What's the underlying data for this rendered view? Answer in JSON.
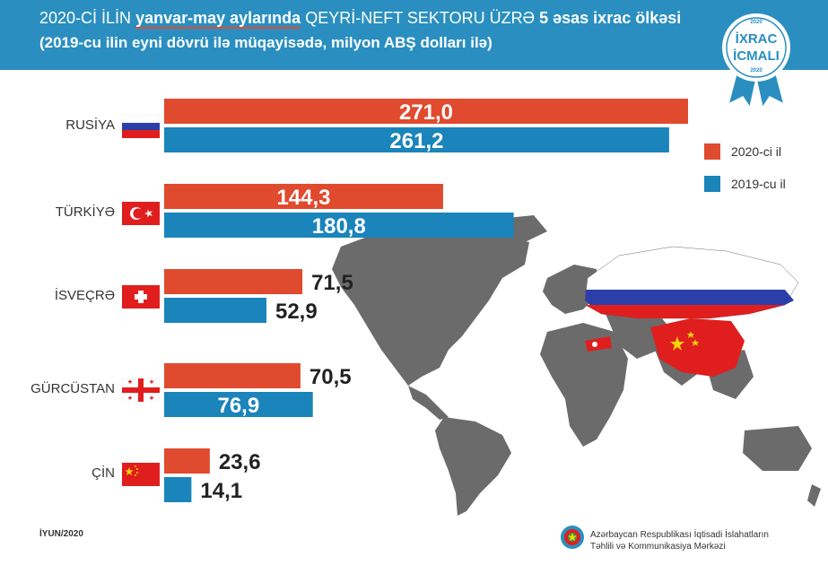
{
  "header": {
    "title_part1": "2020-Cİ İLİN",
    "title_highlight": "yanvar-may aylarında",
    "title_part2": "QEYRİ-NEFT SEKTORU ÜZRƏ",
    "title_bold": "5 əsas ixrac ölkəsi",
    "subtitle": "(2019-cu ilin eyni dövrü ilə müqayisədə, milyon ABŞ dolları ilə)"
  },
  "badge": {
    "year_top": "2020",
    "line1": "İXRAC",
    "line2": "İCMALI",
    "year_bottom": "2020"
  },
  "colors": {
    "header": "#2a8fc0",
    "series_2020": "#e04a2f",
    "series_2019": "#1a84bb",
    "map": "#6b6b6b"
  },
  "chart_data": {
    "type": "bar",
    "orientation": "horizontal",
    "categories": [
      "RUSİYA",
      "TÜRKİYƏ",
      "İSVEÇRƏ",
      "GÜRCÜSTAN",
      "ÇİN"
    ],
    "series": [
      {
        "name": "2020-ci il",
        "values": [
          271.0,
          144.3,
          71.5,
          70.5,
          23.6
        ],
        "labels": [
          "271,0",
          "144,3",
          "71,5",
          "70,5",
          "23,6"
        ]
      },
      {
        "name": "2019-cu il",
        "values": [
          261.2,
          180.8,
          52.9,
          76.9,
          14.1
        ],
        "labels": [
          "261,2",
          "180,8",
          "52,9",
          "76,9",
          "14,1"
        ]
      }
    ],
    "legend_position": "right"
  },
  "flags": [
    "russia-flag",
    "turkey-flag",
    "switzerland-flag",
    "georgia-flag",
    "china-flag"
  ],
  "footer": {
    "date": "İYUN/2020",
    "org_line1": "Azərbaycan Respublikası İqtisadi İslahatların",
    "org_line2": "Təhlili və Kommunikasiya Mərkəzi"
  }
}
